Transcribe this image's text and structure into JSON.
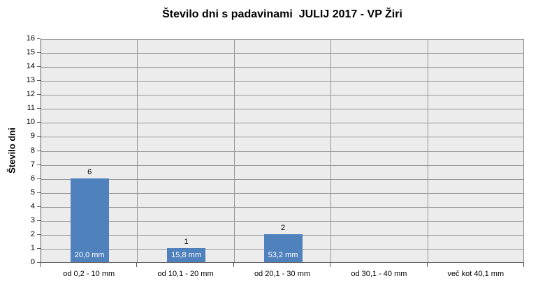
{
  "chart_data": {
    "type": "bar",
    "title": "Število dni s padavinami  JULIJ 2017 - VP Žiri",
    "ylabel": "Število dni",
    "xlabel": "",
    "categories": [
      "od 0,2 - 10 mm",
      "od 10,1 - 20 mm",
      "od 20,1 - 30 mm",
      "od 30,1 - 40 mm",
      "več kot 40,1 mm"
    ],
    "values": [
      6,
      1,
      2,
      0,
      0
    ],
    "bar_inner_labels": [
      "20,0 mm",
      "15,8 mm",
      "53,2 mm",
      "",
      ""
    ],
    "ylim": [
      0,
      16
    ],
    "ytick_step": 1,
    "grid": true,
    "legend": "none",
    "colors": {
      "bar": "#4F81BD",
      "plot_background": "#ECECEC",
      "gridline": "#969696",
      "axis": "#595959",
      "bar_inner_label": "#FFFFFF",
      "text": "#000000"
    }
  }
}
